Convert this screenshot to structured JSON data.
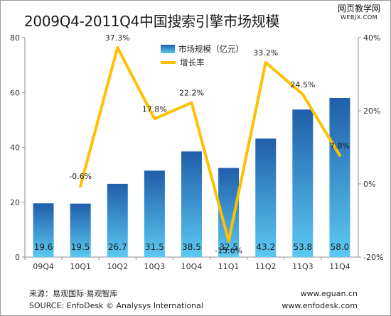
{
  "title": "2009Q4-2011Q4中国搜索引擎市场规模",
  "watermark": {
    "cn": "网页教学网",
    "en": "WEBJX.COM"
  },
  "footer": {
    "source_cn": "来源：易观国际·易观智库",
    "source_en": "SOURCE: EnfoDesk © Analysys International",
    "url1": "www.eguan.cn",
    "url2": "www.enfodesk.com"
  },
  "colors": {
    "bar_top": "#1f5faa",
    "bar_bottom": "#5cc8f2",
    "line": "#ffc000",
    "axis": "#8c8c8c",
    "grid": "#d9d9d9"
  },
  "chart_data": {
    "type": "bar",
    "categories": [
      "09Q4",
      "10Q1",
      "10Q2",
      "10Q3",
      "10Q4",
      "11Q1",
      "11Q2",
      "11Q3",
      "11Q4"
    ],
    "series": [
      {
        "name": "市场规模（亿元）",
        "type": "bar",
        "axis": "left",
        "values": [
          19.6,
          19.5,
          26.7,
          31.5,
          38.5,
          32.5,
          43.2,
          53.8,
          58.0
        ],
        "labels": [
          "19.6",
          "19.5",
          "26.7",
          "31.5",
          "38.5",
          "32.5",
          "43.2",
          "53.8",
          "58.0"
        ]
      },
      {
        "name": "增长率",
        "type": "line",
        "axis": "right",
        "values": [
          null,
          -0.6,
          37.3,
          17.8,
          22.2,
          -15.6,
          33.2,
          24.5,
          7.8
        ],
        "labels": [
          "",
          "-0.6%",
          "37.3%",
          "17.8%",
          "22.2%",
          "-15.6%",
          "33.2%",
          "24.5%",
          "7.8%"
        ]
      }
    ],
    "y_left": {
      "min": 0,
      "max": 80,
      "ticks": [
        "0",
        "20",
        "40",
        "60",
        "80"
      ]
    },
    "y_right": {
      "min": -20,
      "max": 40,
      "ticks": [
        "-20%",
        "0%",
        "20%",
        "40%"
      ]
    },
    "grid": false,
    "legend_position": "top-center"
  }
}
